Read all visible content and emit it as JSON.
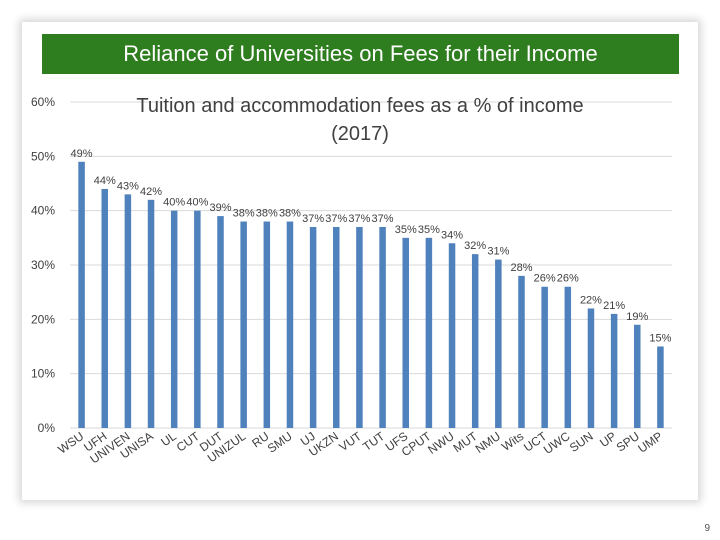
{
  "slide": {
    "banner_title": "Reliance of Universities on Fees for their Income",
    "page_number": "9"
  },
  "colors": {
    "banner": "#2e7d1f",
    "bar": "#4f81bd",
    "grid": "#d9d9d9",
    "text": "#404040"
  },
  "chart_data": {
    "type": "bar",
    "title": "Tuition and accommodation  fees as a % of income",
    "subtitle": "(2017)",
    "xlabel": "",
    "ylabel": "",
    "ylim": [
      0,
      60
    ],
    "yticks": [
      "0%",
      "10%",
      "20%",
      "30%",
      "40%",
      "50%",
      "60%"
    ],
    "grid": true,
    "legend": "none",
    "categories": [
      "WSU",
      "UFH",
      "UNIVEN",
      "UNISA",
      "UL",
      "CUT",
      "DUT",
      "UNIZUL",
      "RU",
      "SMU",
      "UJ",
      "UKZN",
      "VUT",
      "TUT",
      "UFS",
      "CPUT",
      "NWU",
      "MUT",
      "NMU",
      "Wits",
      "UCT",
      "UWC",
      "SUN",
      "UP",
      "SPU",
      "UMP"
    ],
    "values": [
      49,
      44,
      43,
      42,
      40,
      40,
      39,
      38,
      38,
      38,
      37,
      37,
      37,
      37,
      35,
      35,
      34,
      32,
      31,
      28,
      26,
      26,
      22,
      21,
      19,
      15
    ],
    "data_labels": [
      "49%",
      "44%",
      "43%",
      "42%",
      "40%",
      "40%",
      "39%",
      "38%",
      "38%",
      "38%",
      "37%",
      "37%",
      "37%",
      "37%",
      "35%",
      "35%",
      "34%",
      "32%",
      "31%",
      "28%",
      "26%",
      "26%",
      "22%",
      "21%",
      "19%",
      "15%"
    ]
  }
}
